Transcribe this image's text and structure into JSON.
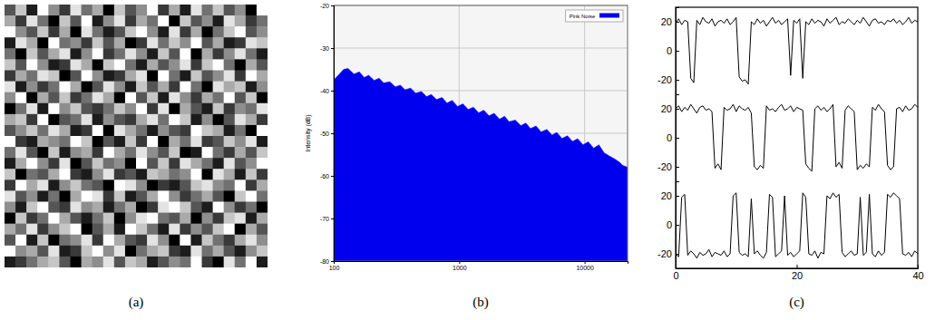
{
  "chart_data": [
    {
      "type": "heatmap",
      "title": "(a)",
      "tick_labels": false,
      "cell_range": [
        0,
        9
      ],
      "cells": [
        [
          3,
          7,
          1,
          9,
          5,
          2,
          8,
          4,
          6,
          0,
          7,
          3,
          5,
          9,
          2,
          6,
          1,
          8,
          4,
          7,
          3,
          5,
          0,
          9
        ],
        [
          6,
          2,
          8,
          4,
          0,
          7,
          3,
          9,
          1,
          5,
          8,
          2,
          6,
          4,
          9,
          0,
          7,
          3,
          5,
          1,
          8,
          6,
          2,
          4
        ],
        [
          9,
          5,
          3,
          7,
          2,
          6,
          0,
          8,
          4,
          1,
          3,
          7,
          9,
          5,
          1,
          8,
          2,
          6,
          0,
          4,
          7,
          9,
          3,
          5
        ],
        [
          1,
          8,
          6,
          0,
          9,
          4,
          5,
          2,
          7,
          3,
          6,
          0,
          2,
          8,
          4,
          7,
          5,
          9,
          3,
          6,
          1,
          2,
          8,
          7
        ],
        [
          4,
          0,
          7,
          3,
          6,
          8,
          1,
          5,
          9,
          2,
          4,
          8,
          5,
          1,
          7,
          3,
          9,
          0,
          6,
          2,
          5,
          8,
          4,
          1
        ],
        [
          7,
          3,
          9,
          5,
          1,
          2,
          8,
          6,
          0,
          7,
          9,
          4,
          1,
          6,
          3,
          5,
          8,
          2,
          7,
          9,
          4,
          0,
          6,
          3
        ],
        [
          2,
          6,
          4,
          8,
          7,
          0,
          3,
          9,
          5,
          1,
          2,
          6,
          8,
          0,
          9,
          4,
          1,
          7,
          3,
          5,
          8,
          2,
          9,
          6
        ],
        [
          8,
          1,
          5,
          2,
          4,
          9,
          6,
          0,
          3,
          8,
          5,
          1,
          7,
          3,
          6,
          2,
          9,
          4,
          0,
          8,
          6,
          7,
          1,
          5
        ],
        [
          5,
          9,
          0,
          6,
          3,
          7,
          2,
          4,
          8,
          6,
          0,
          9,
          3,
          7,
          1,
          8,
          5,
          2,
          6,
          4,
          9,
          3,
          7,
          0
        ],
        [
          0,
          4,
          8,
          1,
          9,
          5,
          7,
          3,
          2,
          4,
          7,
          5,
          9,
          2,
          8,
          0,
          6,
          3,
          1,
          7,
          2,
          5,
          4,
          8
        ],
        [
          6,
          7,
          2,
          9,
          0,
          3,
          4,
          8,
          1,
          5,
          3,
          2,
          6,
          8,
          4,
          9,
          7,
          1,
          5,
          0,
          3,
          8,
          6,
          2
        ],
        [
          3,
          5,
          7,
          4,
          8,
          6,
          1,
          2,
          9,
          0,
          8,
          6,
          4,
          1,
          5,
          3,
          2,
          9,
          7,
          6,
          1,
          4,
          0,
          9
        ],
        [
          9,
          2,
          1,
          6,
          5,
          4,
          9,
          7,
          0,
          3,
          1,
          7,
          2,
          9,
          0,
          6,
          4,
          8,
          2,
          3,
          7,
          5,
          8,
          1
        ],
        [
          4,
          8,
          3,
          0,
          7,
          1,
          5,
          6,
          2,
          9,
          6,
          4,
          8,
          5,
          3,
          7,
          0,
          1,
          9,
          4,
          2,
          6,
          3,
          7
        ],
        [
          1,
          6,
          9,
          5,
          2,
          8,
          0,
          3,
          7,
          4,
          5,
          0,
          9,
          3,
          7,
          2,
          8,
          6,
          4,
          1,
          8,
          3,
          5,
          9
        ],
        [
          7,
          0,
          4,
          3,
          6,
          9,
          2,
          1,
          5,
          8,
          2,
          3,
          1,
          7,
          6,
          4,
          5,
          9,
          0,
          8,
          6,
          1,
          7,
          2
        ],
        [
          2,
          9,
          6,
          8,
          1,
          5,
          7,
          4,
          3,
          0,
          9,
          8,
          5,
          0,
          2,
          1,
          3,
          7,
          8,
          5,
          4,
          9,
          2,
          6
        ],
        [
          8,
          3,
          5,
          1,
          4,
          0,
          6,
          9,
          8,
          2,
          7,
          1,
          3,
          6,
          9,
          5,
          2,
          4,
          6,
          3,
          0,
          7,
          9,
          4
        ],
        [
          5,
          1,
          7,
          9,
          3,
          2,
          8,
          5,
          6,
          1,
          4,
          6,
          0,
          2,
          8,
          9,
          7,
          3,
          1,
          9,
          5,
          2,
          4,
          0
        ],
        [
          0,
          7,
          2,
          4,
          9,
          6,
          3,
          1,
          4,
          7,
          0,
          5,
          8,
          9,
          4,
          3,
          6,
          0,
          5,
          2,
          7,
          8,
          1,
          6
        ],
        [
          6,
          4,
          8,
          2,
          5,
          7,
          9,
          0,
          3,
          6,
          1,
          9,
          7,
          4,
          1,
          8,
          2,
          5,
          3,
          7,
          9,
          0,
          6,
          3
        ],
        [
          3,
          9,
          1,
          7,
          0,
          4,
          5,
          8,
          2,
          9,
          6,
          3,
          2,
          8,
          5,
          0,
          9,
          1,
          7,
          4,
          2,
          6,
          8,
          5
        ],
        [
          9,
          5,
          6,
          3,
          8,
          1,
          2,
          7,
          9,
          5,
          8,
          0,
          4,
          6,
          7,
          2,
          1,
          8,
          4,
          6,
          3,
          1,
          5,
          7
        ],
        [
          1,
          2,
          4,
          6,
          7,
          3,
          0,
          6,
          5,
          8,
          3,
          7,
          6,
          1,
          3,
          5,
          4,
          9,
          2,
          0,
          8,
          4,
          9,
          1
        ]
      ]
    },
    {
      "type": "area",
      "title": "(b)",
      "y_label": "Intensity (dB)",
      "log": "x",
      "grid": true,
      "legend": "top-right",
      "xlim": [
        100,
        22000
      ],
      "xticks": [
        100,
        1000,
        10000
      ],
      "ylim": [
        -80,
        -20
      ],
      "yticks": [
        -80,
        -70,
        -60,
        -50,
        -40,
        -30,
        -20
      ],
      "x": [
        100,
        110,
        120,
        130,
        145,
        160,
        175,
        190,
        210,
        230,
        250,
        280,
        310,
        340,
        370,
        410,
        450,
        500,
        550,
        600,
        660,
        730,
        800,
        880,
        970,
        1070,
        1180,
        1300,
        1430,
        1570,
        1730,
        1900,
        2100,
        2300,
        2500,
        2800,
        3100,
        3400,
        3700,
        4100,
        4500,
        5000,
        5500,
        6000,
        6600,
        7300,
        8000,
        8800,
        9700,
        10700,
        11800,
        13000,
        14300,
        15700,
        17300,
        19000,
        20000,
        22000
      ],
      "series": [
        {
          "name": "Pink Noise",
          "color": "#0000ee",
          "values": [
            -37.5,
            -36.2,
            -35.0,
            -34.8,
            -36.1,
            -35.6,
            -36.9,
            -36.4,
            -37.6,
            -37.1,
            -38.2,
            -37.9,
            -39.1,
            -38.7,
            -39.8,
            -39.4,
            -40.6,
            -40.2,
            -41.4,
            -40.9,
            -42.1,
            -41.6,
            -42.9,
            -42.3,
            -43.7,
            -43.1,
            -44.4,
            -43.9,
            -45.2,
            -44.6,
            -45.9,
            -45.3,
            -46.7,
            -46.0,
            -47.3,
            -46.9,
            -48.2,
            -47.6,
            -48.9,
            -48.3,
            -49.7,
            -49.1,
            -50.4,
            -49.8,
            -51.2,
            -50.6,
            -51.9,
            -51.3,
            -52.7,
            -52.0,
            -53.5,
            -52.7,
            -54.6,
            -55.3,
            -56.0,
            -56.8,
            -57.5,
            -58.0
          ]
        }
      ]
    },
    {
      "type": "line",
      "title": "(c)",
      "grid": false,
      "xlim": [
        0,
        40
      ],
      "xticks": [
        0,
        20,
        40
      ],
      "ylim": [
        -30,
        30
      ],
      "yticks": [
        -20,
        0,
        20
      ],
      "x": [
        0,
        0.5,
        1,
        1.5,
        2,
        2.5,
        3,
        3.5,
        4,
        4.5,
        5,
        5.5,
        6,
        6.5,
        7,
        7.5,
        8,
        8.5,
        9,
        9.5,
        10,
        10.5,
        11,
        11.5,
        12,
        12.5,
        13,
        13.5,
        14,
        14.5,
        15,
        15.5,
        16,
        16.5,
        17,
        17.5,
        18,
        18.5,
        19,
        19.5,
        20,
        20.5,
        21,
        21.5,
        22,
        22.5,
        23,
        23.5,
        24,
        24.5,
        25,
        25.5,
        26,
        26.5,
        27,
        27.5,
        28,
        28.5,
        29,
        29.5,
        30,
        30.5,
        31,
        31.5,
        32,
        32.5,
        33,
        33.5,
        34,
        34.5,
        35,
        35.5,
        36,
        36.5,
        37,
        37.5,
        38,
        38.5,
        39,
        39.5,
        40
      ],
      "series": [
        {
          "color": "#000000",
          "values": [
            19,
            22,
            18,
            21,
            20,
            -19,
            -22,
            21,
            18,
            23,
            20,
            19,
            22,
            17,
            20,
            21,
            19,
            22,
            18,
            20,
            23,
            -18,
            -21,
            -20,
            -23,
            20,
            18,
            22,
            19,
            21,
            17,
            20,
            23,
            19,
            21,
            18,
            20,
            22,
            -17,
            21,
            19,
            22,
            -19,
            20,
            18,
            22,
            19,
            21,
            20,
            17,
            22,
            19,
            21,
            23,
            18,
            20,
            19,
            22,
            20,
            18,
            21,
            19,
            23,
            20,
            17,
            21,
            22,
            19,
            20,
            18,
            21,
            20,
            22,
            19,
            21,
            18,
            20,
            23,
            19,
            21,
            20
          ]
        },
        {
          "color": "#000000",
          "values": [
            20,
            22,
            18,
            21,
            19,
            23,
            20,
            17,
            21,
            22,
            19,
            20,
            18,
            -21,
            -18,
            -22,
            21,
            19,
            20,
            23,
            18,
            22,
            20,
            19,
            21,
            17,
            -20,
            -22,
            -19,
            -21,
            22,
            19,
            20,
            18,
            21,
            23,
            19,
            20,
            22,
            18,
            21,
            20,
            19,
            -18,
            -21,
            -23,
            20,
            22,
            19,
            21,
            18,
            20,
            23,
            -20,
            -17,
            -21,
            19,
            22,
            20,
            18,
            -22,
            -19,
            -21,
            -18,
            -20,
            21,
            19,
            23,
            20,
            18,
            -19,
            -22,
            -20,
            20,
            21,
            18,
            22,
            19,
            20,
            23,
            21
          ]
        },
        {
          "color": "#000000",
          "values": [
            -20,
            -22,
            19,
            21,
            -21,
            -18,
            -20,
            -23,
            -19,
            -21,
            -20,
            -17,
            -22,
            -19,
            -20,
            -21,
            -18,
            -22,
            -20,
            20,
            22,
            -19,
            -21,
            -20,
            -22,
            18,
            -20,
            -18,
            -21,
            -23,
            -19,
            21,
            19,
            -22,
            -20,
            -18,
            20,
            -21,
            -19,
            -22,
            -20,
            -18,
            22,
            19,
            -20,
            -21,
            -18,
            -23,
            -19,
            -20,
            20,
            18,
            22,
            19,
            21,
            -19,
            -22,
            -20,
            -18,
            -21,
            -20,
            19,
            -21,
            -19,
            21,
            -20,
            -22,
            -18,
            -21,
            -19,
            21,
            19,
            22,
            20,
            18,
            -20,
            -21,
            -19,
            -22,
            -18,
            -20
          ]
        }
      ]
    }
  ]
}
